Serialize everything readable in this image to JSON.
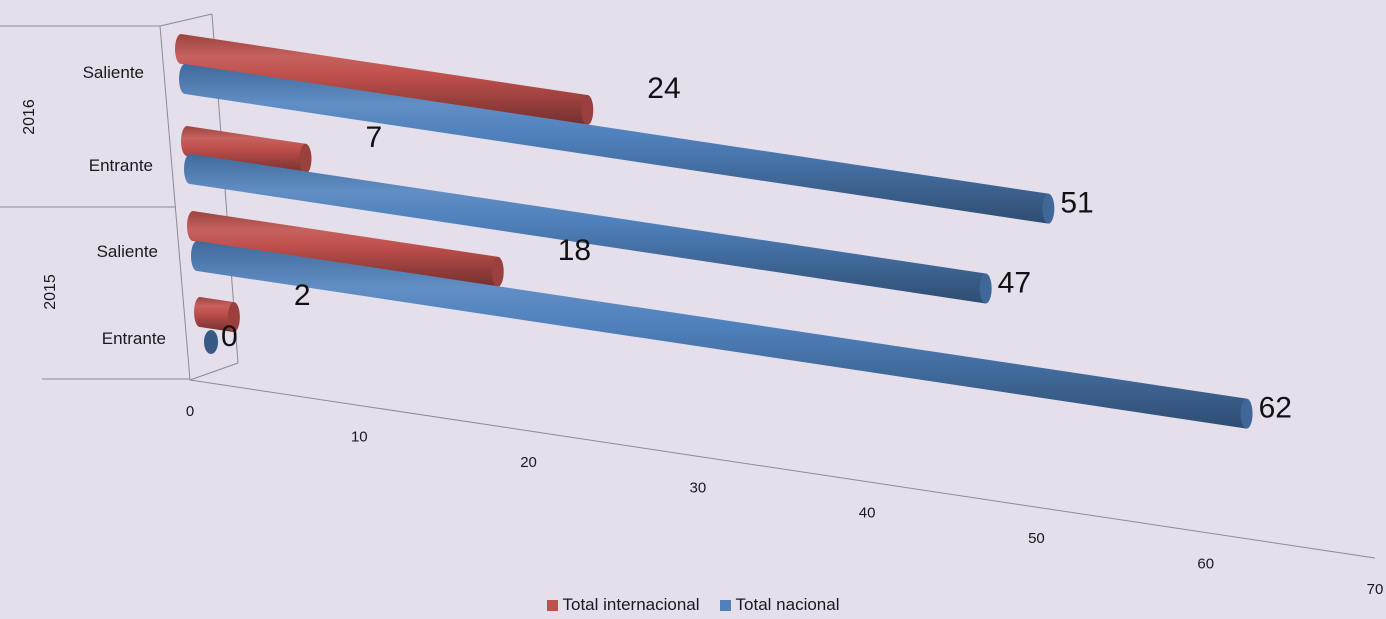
{
  "chart_data": {
    "type": "bar",
    "orientation": "horizontal",
    "style": "3d-cylinder",
    "groups": [
      "2016",
      "2015"
    ],
    "categories": [
      "2016 Saliente",
      "2016 Entrante",
      "2015 Saliente",
      "2015 Entrante"
    ],
    "category_labels": [
      "Saliente",
      "Entrante",
      "Saliente",
      "Entrante"
    ],
    "series": [
      {
        "name": "Total internacional",
        "color": "#c0504d",
        "values": [
          24,
          7,
          18,
          2
        ]
      },
      {
        "name": "Total nacional",
        "color": "#4f81bd",
        "values": [
          51,
          47,
          62,
          0
        ]
      }
    ],
    "xlim": [
      0,
      70
    ],
    "x_ticks": [
      "0",
      "10",
      "20",
      "30",
      "40",
      "50",
      "60",
      "70"
    ],
    "legend_position": "bottom",
    "data_labels": true,
    "grid": false,
    "background": "#e5dfec"
  }
}
